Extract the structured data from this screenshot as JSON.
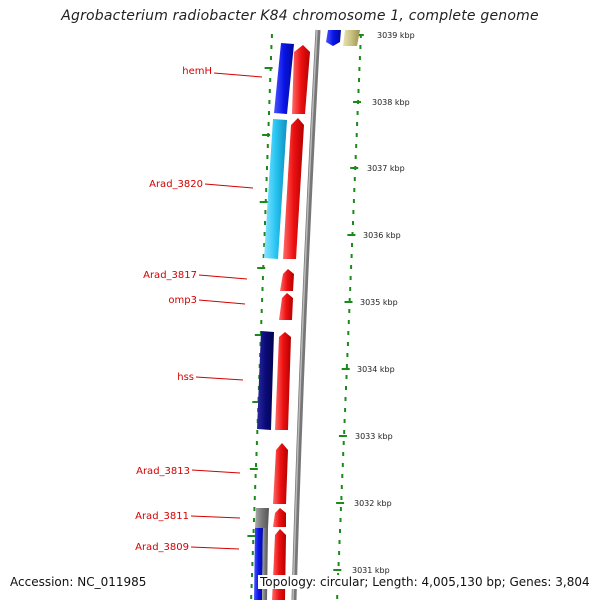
{
  "title": "Agrobacterium radiobacter K84 chromosome 1, complete genome",
  "gene_labels": [
    "hemH",
    "Arad_3820",
    "Arad_3817",
    "omp3",
    "hss",
    "Arad_3813",
    "Arad_3811",
    "Arad_3809"
  ],
  "kbp_ticks": [
    "3039 kbp",
    "3038 kbp",
    "3037 kbp",
    "3036 kbp",
    "3035 kbp",
    "3034 kbp",
    "3033 kbp",
    "3032 kbp",
    "3031 kbp"
  ],
  "footer": {
    "accession": "Accession: NC_011985",
    "summary": "Topology: circular; Length: 4,005,130 bp; Genes: 3,804"
  },
  "colors": {
    "label_red": "#d40000",
    "gene_red": "#ee1111",
    "gene_blue": "#0a14e6",
    "gene_cyan": "#29c6f2",
    "gene_navy": "#0a0a7a",
    "gene_gray": "#777777",
    "gene_olive": "#c8c080",
    "tick_green": "#1a8a1a",
    "backbone": "#888888"
  }
}
